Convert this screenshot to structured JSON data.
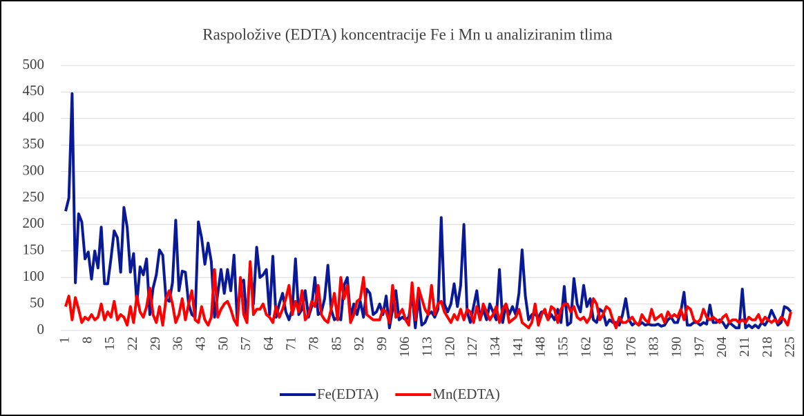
{
  "chart_data": {
    "type": "line",
    "title": "Raspoložive (EDTA) koncentracije Fe i Mn u analiziranim tlima",
    "categories": [
      "1",
      null,
      null,
      null,
      null,
      null,
      null,
      "8",
      null,
      null,
      null,
      null,
      null,
      null,
      "15",
      null,
      null,
      null,
      null,
      null,
      null,
      "22",
      null,
      null,
      null,
      null,
      null,
      null,
      "29",
      null,
      null,
      null,
      null,
      null,
      null,
      "36",
      null,
      null,
      null,
      null,
      null,
      null,
      "43",
      null,
      null,
      null,
      null,
      null,
      null,
      "50",
      null,
      null,
      null,
      null,
      null,
      null,
      "57",
      null,
      null,
      null,
      null,
      null,
      null,
      "64",
      null,
      null,
      null,
      null,
      null,
      null,
      "71",
      null,
      null,
      null,
      null,
      null,
      null,
      "78",
      null,
      null,
      null,
      null,
      null,
      null,
      "85",
      null,
      null,
      null,
      null,
      null,
      null,
      "92",
      null,
      null,
      null,
      null,
      null,
      null,
      "99",
      null,
      null,
      null,
      null,
      null,
      null,
      "106",
      null,
      null,
      null,
      null,
      null,
      null,
      "113",
      null,
      null,
      null,
      null,
      null,
      null,
      "120",
      null,
      null,
      null,
      null,
      null,
      null,
      "127",
      null,
      null,
      null,
      null,
      null,
      null,
      "134",
      null,
      null,
      null,
      null,
      null,
      null,
      "141",
      null,
      null,
      null,
      null,
      null,
      null,
      "148",
      null,
      null,
      null,
      null,
      null,
      null,
      "155",
      null,
      null,
      null,
      null,
      null,
      null,
      "162",
      null,
      null,
      null,
      null,
      null,
      null,
      "169",
      null,
      null,
      null,
      null,
      null,
      null,
      "176",
      null,
      null,
      null,
      null,
      null,
      null,
      "183",
      null,
      null,
      null,
      null,
      null,
      null,
      "190",
      null,
      null,
      null,
      null,
      null,
      null,
      "197",
      null,
      null,
      null,
      null,
      null,
      null,
      "204",
      null,
      null,
      null,
      null,
      null,
      null,
      "211",
      null,
      null,
      null,
      null,
      null,
      null,
      "218",
      null,
      null,
      null,
      null,
      null,
      null,
      "225"
    ],
    "series": [
      {
        "name": "Fe(EDTA)",
        "color": "#0a1a96",
        "values": [
          225,
          250,
          447,
          90,
          220,
          205,
          135,
          148,
          97,
          150,
          118,
          195,
          88,
          88,
          135,
          188,
          175,
          110,
          232,
          195,
          110,
          145,
          50,
          120,
          105,
          135,
          30,
          80,
          105,
          152,
          142,
          60,
          55,
          90,
          208,
          75,
          112,
          110,
          50,
          30,
          25,
          205,
          175,
          125,
          165,
          130,
          25,
          70,
          115,
          70,
          115,
          75,
          142,
          20,
          90,
          95,
          15,
          125,
          50,
          157,
          100,
          105,
          115,
          30,
          140,
          25,
          50,
          70,
          35,
          20,
          40,
          135,
          30,
          40,
          75,
          25,
          45,
          100,
          30,
          35,
          60,
          123,
          40,
          20,
          25,
          20,
          85,
          100,
          25,
          50,
          30,
          55,
          25,
          78,
          70,
          30,
          35,
          50,
          30,
          65,
          5,
          40,
          75,
          20,
          25,
          20,
          25,
          70,
          5,
          65,
          10,
          15,
          30,
          35,
          25,
          40,
          213,
          50,
          35,
          50,
          88,
          45,
          85,
          200,
          35,
          15,
          45,
          75,
          20,
          40,
          20,
          50,
          35,
          20,
          115,
          15,
          50,
          30,
          45,
          30,
          70,
          152,
          65,
          20,
          30,
          30,
          25,
          35,
          35,
          20,
          30,
          20,
          40,
          15,
          83,
          10,
          15,
          98,
          50,
          35,
          85,
          45,
          60,
          20,
          15,
          40,
          35,
          10,
          20,
          15,
          15,
          10,
          30,
          60,
          20,
          10,
          15,
          10,
          15,
          10,
          12,
          10,
          10,
          12,
          8,
          10,
          20,
          25,
          15,
          15,
          35,
          72,
          10,
          10,
          15,
          15,
          10,
          15,
          12,
          48,
          15,
          15,
          20,
          15,
          5,
          15,
          10,
          5,
          5,
          78,
          5,
          10,
          5,
          10,
          5,
          15,
          10,
          20,
          38,
          25,
          10,
          15,
          45,
          42,
          35
        ]
      },
      {
        "name": "Mn(EDTA)",
        "color": "#ff0000",
        "values": [
          45,
          65,
          20,
          62,
          40,
          15,
          25,
          20,
          30,
          20,
          25,
          50,
          20,
          35,
          25,
          55,
          20,
          30,
          25,
          10,
          45,
          15,
          65,
          35,
          25,
          45,
          80,
          30,
          15,
          45,
          10,
          60,
          75,
          50,
          15,
          30,
          60,
          20,
          50,
          75,
          20,
          15,
          45,
          20,
          10,
          25,
          115,
          25,
          40,
          50,
          55,
          40,
          20,
          10,
          100,
          30,
          15,
          130,
          30,
          40,
          40,
          50,
          30,
          25,
          15,
          45,
          25,
          40,
          60,
          85,
          30,
          55,
          35,
          75,
          20,
          30,
          55,
          45,
          85,
          30,
          20,
          15,
          40,
          70,
          20,
          100,
          60,
          85,
          15,
          30,
          55,
          60,
          100,
          30,
          25,
          20,
          20,
          20,
          40,
          35,
          15,
          85,
          25,
          30,
          40,
          20,
          10,
          90,
          20,
          80,
          60,
          40,
          30,
          85,
          30,
          50,
          55,
          35,
          25,
          15,
          30,
          20,
          40,
          20,
          40,
          35,
          15,
          45,
          20,
          50,
          35,
          20,
          30,
          45,
          15,
          40,
          50,
          15,
          20,
          25,
          40,
          15,
          10,
          5,
          15,
          50,
          10,
          30,
          40,
          20,
          45,
          40,
          15,
          40,
          50,
          50,
          35,
          45,
          25,
          20,
          25,
          15,
          25,
          60,
          50,
          20,
          30,
          45,
          40,
          20,
          5,
          25,
          15,
          15,
          20,
          25,
          15,
          10,
          30,
          20,
          15,
          40,
          20,
          25,
          30,
          15,
          35,
          25,
          30,
          25,
          40,
          20,
          45,
          40,
          20,
          15,
          20,
          40,
          25,
          20,
          25,
          20,
          15,
          25,
          30,
          15,
          20,
          20,
          15,
          20,
          15,
          25,
          20,
          20,
          30,
          15,
          25,
          20,
          15,
          20,
          15,
          25,
          20,
          10,
          35
        ]
      }
    ],
    "ylim": [
      0,
      500
    ],
    "yticks": [
      0,
      50,
      100,
      150,
      200,
      250,
      300,
      350,
      400,
      450,
      500
    ],
    "grid": true,
    "legend": "bottom"
  }
}
